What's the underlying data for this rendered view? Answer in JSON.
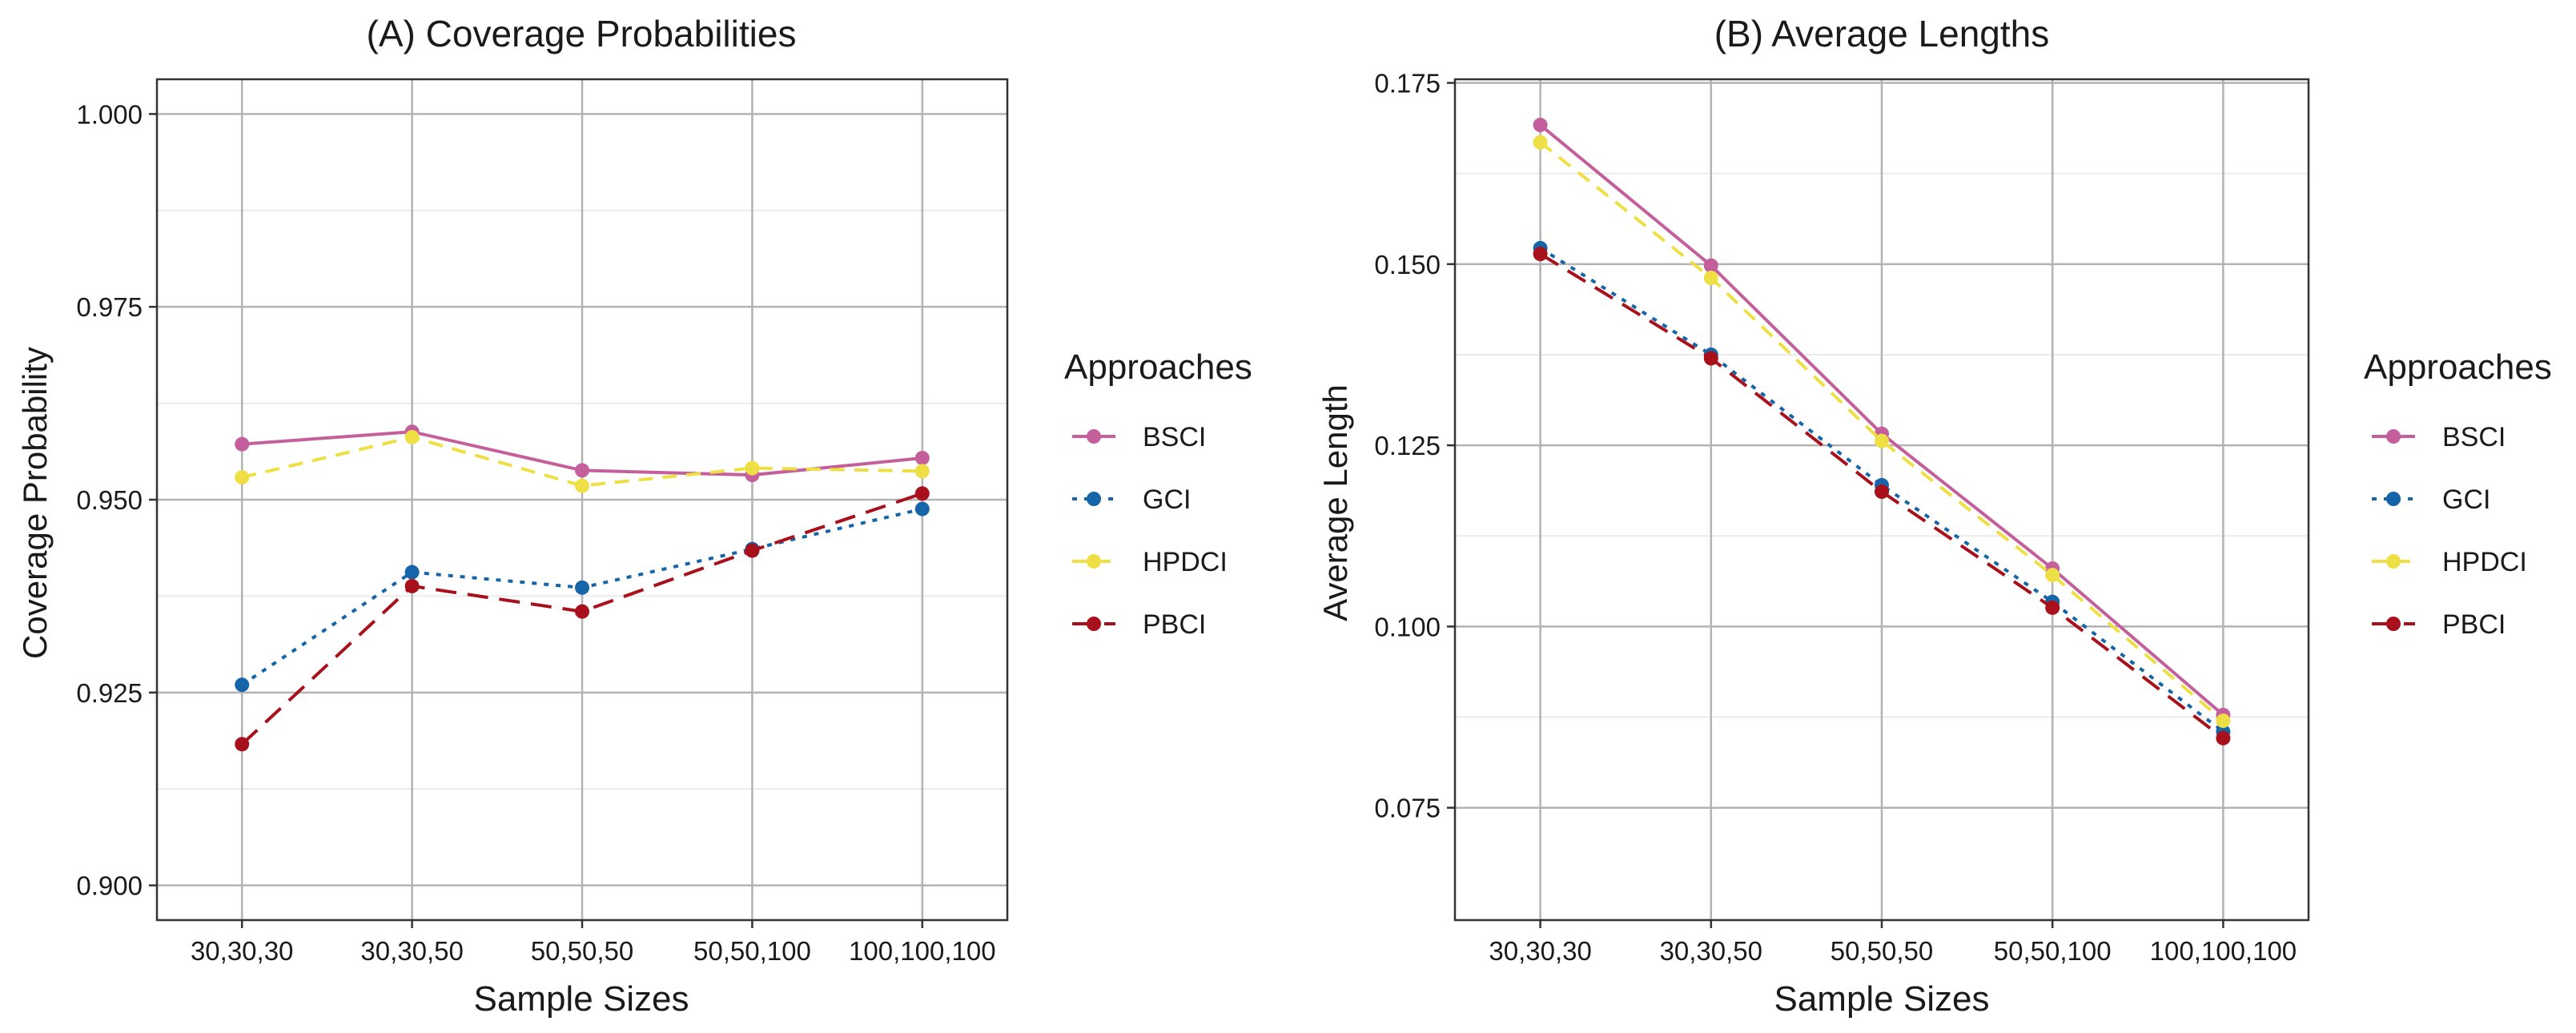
{
  "chart_data": [
    {
      "type": "line",
      "title": "(A) Coverage Probabilities",
      "xlabel": "Sample Sizes",
      "ylabel": "Coverage Probability",
      "categories": [
        "30,30,30",
        "30,30,50",
        "50,50,50",
        "50,50,100",
        "100,100,100"
      ],
      "ylim": [
        0.8955,
        1.0045
      ],
      "yticks": [
        0.9,
        0.925,
        0.95,
        0.975,
        1.0
      ],
      "ytick_labels": [
        "0.900",
        "0.925",
        "0.950",
        "0.975",
        "1.000"
      ],
      "grid": true,
      "legend_title": "Approaches",
      "legend_position": "right",
      "series": [
        {
          "name": "BSCI",
          "color": "#c45f9b",
          "dash": "solid",
          "values": [
            0.9572,
            0.9588,
            0.9538,
            0.9532,
            0.9554
          ]
        },
        {
          "name": "GCI",
          "color": "#1565a8",
          "dash": "dotted",
          "values": [
            0.926,
            0.9406,
            0.9386,
            0.9436,
            0.9488
          ]
        },
        {
          "name": "HPDCI",
          "color": "#eee044",
          "dash": "dashed",
          "values": [
            0.9529,
            0.9581,
            0.9518,
            0.9541,
            0.9537
          ]
        },
        {
          "name": "PBCI",
          "color": "#a8101c",
          "dash": "longdash",
          "values": [
            0.9183,
            0.9388,
            0.9355,
            0.9434,
            0.9508
          ]
        }
      ]
    },
    {
      "type": "line",
      "title": "(B) Average Lengths",
      "xlabel": "Sample Sizes",
      "ylabel": "Average Length",
      "categories": [
        "30,30,30",
        "30,30,50",
        "50,50,50",
        "50,50,100",
        "100,100,100"
      ],
      "ylim": [
        0.0595,
        0.1755
      ],
      "yticks": [
        0.075,
        0.1,
        0.125,
        0.15,
        0.175
      ],
      "ytick_labels": [
        "0.075",
        "0.100",
        "0.125",
        "0.150",
        "0.175"
      ],
      "grid": true,
      "legend_title": "Approaches",
      "legend_position": "right",
      "series": [
        {
          "name": "BSCI",
          "color": "#c45f9b",
          "dash": "solid",
          "values": [
            0.1692,
            0.1498,
            0.1266,
            0.108,
            0.0878
          ]
        },
        {
          "name": "GCI",
          "color": "#1565a8",
          "dash": "dotted",
          "values": [
            0.1522,
            0.1375,
            0.1195,
            0.1034,
            0.0855
          ]
        },
        {
          "name": "HPDCI",
          "color": "#eee044",
          "dash": "dashed",
          "values": [
            0.1668,
            0.1481,
            0.1256,
            0.1071,
            0.087
          ]
        },
        {
          "name": "PBCI",
          "color": "#a8101c",
          "dash": "longdash",
          "values": [
            0.1514,
            0.137,
            0.1186,
            0.1026,
            0.0846
          ]
        }
      ]
    }
  ]
}
